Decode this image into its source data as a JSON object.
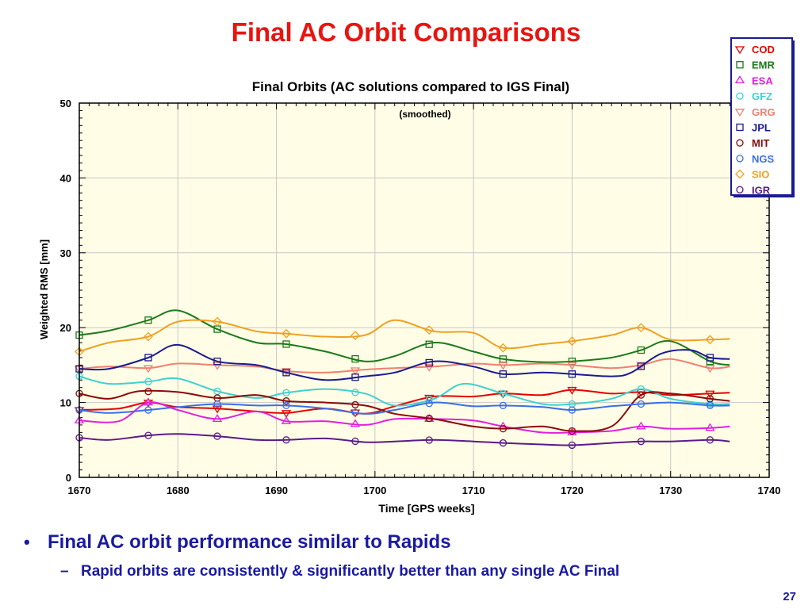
{
  "slide": {
    "title": "Final AC Orbit Comparisons",
    "bullet1": "Final AC orbit performance similar to Rapids",
    "bullet2": "Rapid orbits are consistently & significantly better than any single AC Final",
    "bullet_marker": "•",
    "sub_marker": "–",
    "page_number": "27"
  },
  "chart_data": {
    "type": "line",
    "title": "Final Orbits (AC solutions compared to IGS Final)",
    "subtitle": "(smoothed)",
    "xlabel": "Time [GPS weeks]",
    "ylabel": "Weighted RMS [mm]",
    "xlim": [
      1670,
      1740
    ],
    "ylim": [
      0,
      50
    ],
    "xticks": [
      1670,
      1680,
      1690,
      1700,
      1710,
      1720,
      1730,
      1740
    ],
    "yticks": [
      0,
      10,
      20,
      30,
      40,
      50
    ],
    "grid": true,
    "background": "#fffde6",
    "legend_position": "top-right",
    "series": [
      {
        "name": "COD",
        "color": "#e60000",
        "marker": "triangle-down",
        "x": [
          1670,
          1674,
          1677,
          1680,
          1684,
          1688,
          1691,
          1695,
          1699,
          1702,
          1706,
          1710,
          1713,
          1717,
          1720,
          1724,
          1727,
          1730,
          1734,
          1736
        ],
        "y": [
          9,
          9.2,
          10,
          9.4,
          9.2,
          8.8,
          8.6,
          9.2,
          8.5,
          9.5,
          10.8,
          10.8,
          11.2,
          11,
          11.7,
          11.2,
          11.4,
          11,
          11.2,
          11.3
        ]
      },
      {
        "name": "EMR",
        "color": "#1a7a1a",
        "marker": "square",
        "x": [
          1670,
          1673,
          1677,
          1680,
          1684,
          1688,
          1691,
          1695,
          1699,
          1702,
          1706,
          1710,
          1713,
          1717,
          1720,
          1724,
          1727,
          1730,
          1734,
          1736
        ],
        "y": [
          19,
          19.6,
          21,
          22.3,
          19.8,
          18,
          17.8,
          16.8,
          15.5,
          16.2,
          18,
          16.8,
          15.8,
          15.4,
          15.5,
          16,
          17,
          18.2,
          15.5,
          15
        ]
      },
      {
        "name": "ESA",
        "color": "#e020e0",
        "marker": "triangle-up",
        "x": [
          1670,
          1674,
          1677,
          1680,
          1684,
          1688,
          1691,
          1695,
          1699,
          1702,
          1706,
          1710,
          1713,
          1717,
          1720,
          1724,
          1727,
          1730,
          1734,
          1736
        ],
        "y": [
          7.6,
          7.5,
          10,
          9,
          7.8,
          8.8,
          7.5,
          7.5,
          7,
          7.8,
          7.8,
          7.6,
          6.8,
          6,
          6,
          6.2,
          6.8,
          6.5,
          6.6,
          6.8
        ]
      },
      {
        "name": "GFZ",
        "color": "#40d0d0",
        "marker": "circle",
        "x": [
          1670,
          1673,
          1677,
          1680,
          1684,
          1688,
          1691,
          1695,
          1699,
          1702,
          1706,
          1709,
          1713,
          1717,
          1720,
          1724,
          1727,
          1730,
          1734,
          1736
        ],
        "y": [
          13.5,
          12.5,
          12.8,
          13.2,
          11.5,
          10.6,
          11.3,
          11.8,
          11.2,
          9.6,
          10.5,
          12.5,
          11.2,
          9.8,
          9.8,
          10.5,
          11.8,
          10.5,
          9.8,
          9.8
        ]
      },
      {
        "name": "GRG",
        "color": "#f08070",
        "marker": "triangle-down",
        "x": [
          1670,
          1673,
          1677,
          1680,
          1684,
          1688,
          1691,
          1695,
          1699,
          1702,
          1706,
          1710,
          1713,
          1717,
          1720,
          1724,
          1727,
          1730,
          1734,
          1736
        ],
        "y": [
          14.5,
          14.8,
          14.6,
          15.2,
          15,
          14.8,
          14.2,
          14,
          14.4,
          14.6,
          14.8,
          15.2,
          15,
          15.2,
          15,
          14.6,
          15,
          15.8,
          14.6,
          14.8
        ]
      },
      {
        "name": "JPL",
        "color": "#1a1a90",
        "marker": "square",
        "x": [
          1670,
          1673,
          1677,
          1680,
          1684,
          1688,
          1691,
          1695,
          1699,
          1702,
          1706,
          1710,
          1713,
          1717,
          1720,
          1724,
          1726,
          1729,
          1732,
          1734,
          1736
        ],
        "y": [
          14.5,
          14.5,
          16,
          17.7,
          15.5,
          15,
          14,
          13,
          13.5,
          14,
          15.5,
          14.8,
          13.8,
          14,
          13.8,
          13.5,
          14,
          16.5,
          17,
          16,
          15.8
        ]
      },
      {
        "name": "MIT",
        "color": "#8b0a0a",
        "marker": "circle",
        "x": [
          1670,
          1673,
          1676,
          1680,
          1684,
          1688,
          1691,
          1695,
          1699,
          1702,
          1706,
          1710,
          1713,
          1717,
          1720,
          1724,
          1727,
          1730,
          1734,
          1736
        ],
        "y": [
          11.2,
          10.5,
          11.5,
          11.4,
          10.6,
          11,
          10.2,
          10,
          9.6,
          8.5,
          7.8,
          6.8,
          6.5,
          6.8,
          6.2,
          6.8,
          11,
          11.2,
          10.5,
          10.2
        ]
      },
      {
        "name": "NGS",
        "color": "#3a6ee8",
        "marker": "circle",
        "x": [
          1670,
          1673,
          1677,
          1680,
          1684,
          1688,
          1691,
          1695,
          1699,
          1702,
          1706,
          1710,
          1713,
          1717,
          1720,
          1724,
          1727,
          1730,
          1734,
          1736
        ],
        "y": [
          9,
          8.6,
          9,
          9.4,
          9.8,
          9.6,
          9.6,
          9.2,
          8.5,
          9,
          10,
          9.5,
          9.6,
          9.4,
          9,
          9.5,
          9.8,
          10,
          9.6,
          9.6
        ]
      },
      {
        "name": "SIO",
        "color": "#f0a020",
        "marker": "diamond",
        "x": [
          1670,
          1673,
          1677,
          1680,
          1684,
          1688,
          1691,
          1695,
          1699,
          1702,
          1706,
          1710,
          1713,
          1717,
          1720,
          1724,
          1727,
          1730,
          1734,
          1736
        ],
        "y": [
          16.8,
          18,
          18.8,
          20.8,
          20.8,
          19.5,
          19.2,
          18.8,
          19,
          21,
          19.5,
          19.3,
          17.3,
          17.8,
          18.2,
          19,
          20,
          18.4,
          18.4,
          18.5
        ]
      },
      {
        "name": "IGR",
        "color": "#5a1a8a",
        "marker": "circle",
        "x": [
          1670,
          1673,
          1677,
          1680,
          1684,
          1688,
          1691,
          1695,
          1699,
          1702,
          1706,
          1710,
          1713,
          1717,
          1720,
          1724,
          1727,
          1730,
          1734,
          1736
        ],
        "y": [
          5.3,
          5,
          5.6,
          5.8,
          5.5,
          5,
          5,
          5.2,
          4.7,
          4.8,
          5,
          4.8,
          4.6,
          4.4,
          4.3,
          4.6,
          4.8,
          4.8,
          5,
          4.8
        ]
      }
    ]
  }
}
